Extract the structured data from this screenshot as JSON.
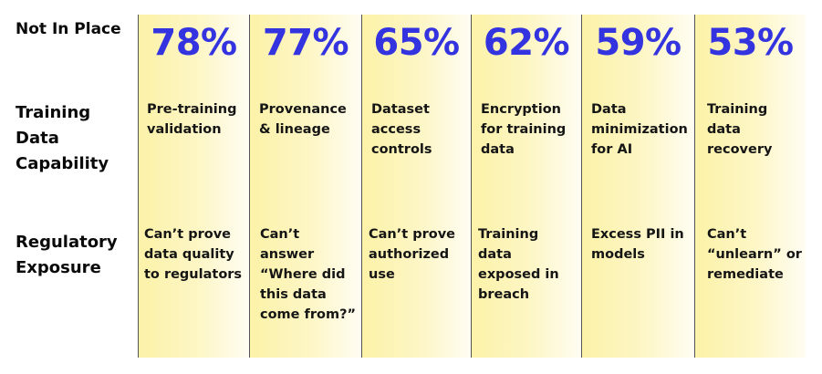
{
  "row_labels": {
    "not_in_place": "Not In Place",
    "capability": "Training\nData\nCapability",
    "exposure": "Regulatory\nExposure"
  },
  "columns": [
    {
      "percent": "78%",
      "capability": "Pre-training validation",
      "exposure": "Can’t prove data quality to regulators"
    },
    {
      "percent": "77%",
      "capability": "Provenance & lineage",
      "exposure": "Can’t answer “Where did this data come from?”"
    },
    {
      "percent": "65%",
      "capability": "Dataset access controls",
      "exposure": "Can’t prove authorized use"
    },
    {
      "percent": "62%",
      "capability": "Encryption for training data",
      "exposure": "Training data exposed in breach"
    },
    {
      "percent": "59%",
      "capability": "Data minimization for AI",
      "exposure": "Excess PII in models"
    },
    {
      "percent": "53%",
      "capability": "Training data recovery",
      "exposure": "Can’t “unlearn” or remediate"
    }
  ],
  "colors": {
    "percent": "#3333e0",
    "column_fill": "#fcf2a8",
    "divider": "#555555"
  }
}
